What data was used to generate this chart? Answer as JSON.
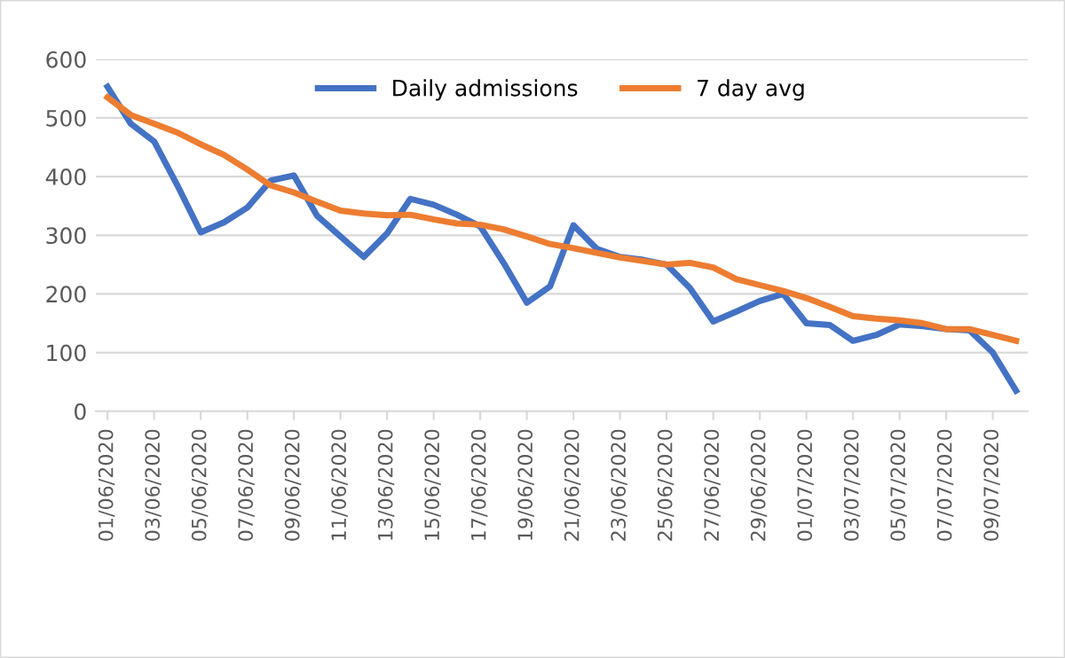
{
  "chart_data": {
    "type": "line",
    "categories": [
      "01/06/2020",
      null,
      "03/06/2020",
      null,
      "05/06/2020",
      null,
      "07/06/2020",
      null,
      "09/06/2020",
      null,
      "11/06/2020",
      null,
      "13/06/2020",
      null,
      "15/06/2020",
      null,
      "17/06/2020",
      null,
      "19/06/2020",
      null,
      "21/06/2020",
      null,
      "23/06/2020",
      null,
      "25/06/2020",
      null,
      "27/06/2020",
      null,
      "29/06/2020",
      null,
      "01/07/2020",
      null,
      "03/07/2020",
      null,
      "05/07/2020",
      null,
      "07/07/2020",
      null,
      "09/07/2020",
      null
    ],
    "series": [
      {
        "name": "Daily admissions",
        "color": "#4472c4",
        "values": [
          553,
          490,
          460,
          385,
          305,
          322,
          347,
          393,
          402,
          333,
          298,
          263,
          303,
          362,
          352,
          335,
          315,
          253,
          185,
          213,
          317,
          277,
          263,
          258,
          250,
          210,
          153,
          170,
          188,
          200,
          150,
          147,
          120,
          130,
          148,
          145,
          140,
          138,
          100,
          35
        ]
      },
      {
        "name": "7 day avg",
        "color": "#ed7d31",
        "values": [
          535,
          505,
          490,
          475,
          455,
          437,
          412,
          385,
          373,
          357,
          342,
          337,
          334,
          335,
          327,
          320,
          318,
          310,
          298,
          285,
          278,
          270,
          262,
          256,
          250,
          253,
          245,
          225,
          215,
          205,
          193,
          178,
          162,
          158,
          155,
          150,
          140,
          140,
          130,
          120
        ]
      }
    ],
    "ylim": [
      0,
      600
    ],
    "yticks": [
      0,
      100,
      200,
      300,
      400,
      500,
      600
    ],
    "grid": "y",
    "legend": "top",
    "marker": "none",
    "line_style": "solid"
  }
}
